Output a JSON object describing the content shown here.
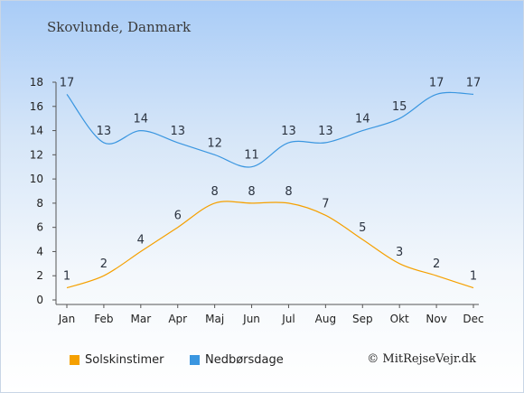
{
  "title": "Skovlunde, Danmark",
  "credit": "© MitRejseVejr.dk",
  "chart_data": {
    "type": "line",
    "categories": [
      "Jan",
      "Feb",
      "Mar",
      "Apr",
      "Maj",
      "Jun",
      "Jul",
      "Aug",
      "Sep",
      "Okt",
      "Nov",
      "Dec"
    ],
    "yticks": [
      0,
      2,
      4,
      6,
      8,
      10,
      12,
      14,
      16,
      18
    ],
    "ylim": [
      0,
      18
    ],
    "grid": false,
    "legend_position": "bottom-left",
    "series": [
      {
        "name": "Solskinstimer",
        "color": "#f5a000",
        "values": [
          1,
          2,
          4,
          6,
          8,
          8,
          8,
          7,
          5,
          3,
          2,
          1
        ]
      },
      {
        "name": "Nedbørsdage",
        "color": "#3a96e0",
        "values": [
          17,
          13,
          14,
          13,
          12,
          11,
          13,
          13,
          14,
          15,
          17,
          17
        ]
      }
    ]
  }
}
